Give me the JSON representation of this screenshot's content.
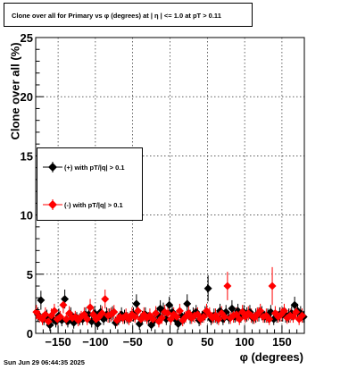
{
  "title": "Clone  over all for Primary vs φ (degrees) at |   η  | <= 1.0 at pT > 0.11",
  "timestamp": "Sun Jun 29 06:44:35 2025",
  "colors": {
    "plus": "#000000",
    "minus": "#ff0000"
  },
  "chart_data": {
    "type": "scatter",
    "title": "Clone  over all for Primary vs φ (degrees) at |   η  | <= 1.0 at pT > 0.11",
    "xlabel": "φ (degrees)",
    "ylabel": "Clone  over all (%)",
    "xlim": [
      -180,
      180
    ],
    "ylim": [
      0,
      25
    ],
    "xticks": [
      -150,
      -100,
      -50,
      0,
      50,
      100,
      150
    ],
    "xtick_labels": [
      "−150",
      "−100",
      "−50",
      "0",
      "50",
      "100",
      "150"
    ],
    "yticks": [
      0,
      5,
      10,
      15,
      20,
      25
    ],
    "ytick_labels": [
      "0",
      "5",
      "10",
      "15",
      "20",
      "25"
    ],
    "grid": true,
    "legend_position": "left-middle",
    "series": [
      {
        "name": "(+) with pT/|q| > 0.1",
        "color": "#000000",
        "x": [
          -177,
          -173,
          -169,
          -165,
          -161,
          -157,
          -153,
          -149,
          -145,
          -141,
          -137,
          -133,
          -129,
          -125,
          -121,
          -117,
          -113,
          -109,
          -105,
          -101,
          -97,
          -93,
          -89,
          -85,
          -81,
          -77,
          -73,
          -69,
          -65,
          -61,
          -57,
          -53,
          -49,
          -45,
          -41,
          -37,
          -33,
          -29,
          -25,
          -21,
          -17,
          -13,
          -9,
          -5,
          -1,
          3,
          7,
          11,
          15,
          19,
          23,
          27,
          31,
          35,
          39,
          43,
          47,
          51,
          55,
          59,
          63,
          67,
          71,
          75,
          79,
          83,
          87,
          91,
          95,
          99,
          103,
          107,
          111,
          115,
          119,
          123,
          127,
          131,
          135,
          139,
          143,
          147,
          151,
          155,
          159,
          163,
          167,
          171,
          175,
          179
        ],
        "y": [
          1.6,
          2.8,
          1.2,
          1.4,
          0.7,
          1.2,
          1.0,
          1.5,
          1.1,
          2.9,
          1.0,
          1.6,
          0.9,
          1.3,
          1.2,
          1.2,
          1.6,
          1.6,
          1.0,
          1.7,
          0.8,
          1.8,
          1.2,
          1.6,
          1.5,
          1.7,
          0.9,
          1.2,
          1.6,
          1.4,
          1.3,
          1.4,
          1.6,
          2.5,
          0.8,
          1.4,
          1.6,
          1.3,
          0.7,
          1.1,
          1.6,
          2.1,
          1.9,
          1.2,
          2.4,
          1.8,
          1.2,
          0.8,
          1.5,
          1.3,
          2.5,
          1.4,
          1.6,
          1.8,
          1.1,
          1.4,
          1.7,
          3.8,
          1.2,
          1.5,
          1.3,
          1.9,
          1.2,
          1.8,
          1.3,
          2.1,
          1.4,
          1.9,
          1.4,
          1.8,
          1.6,
          1.8,
          1.3,
          1.5,
          1.6,
          1.7,
          1.4,
          1.5,
          1.8,
          1.2,
          1.4,
          1.6,
          1.6,
          1.5,
          1.5,
          1.7,
          2.4,
          1.9,
          1.7,
          1.4
        ],
        "err": [
          0.6,
          0.8,
          0.5,
          0.6,
          0.5,
          0.6,
          0.5,
          0.6,
          0.5,
          0.8,
          0.5,
          0.6,
          0.5,
          0.5,
          0.5,
          0.5,
          0.6,
          0.6,
          0.5,
          0.6,
          0.5,
          0.6,
          0.5,
          0.6,
          0.6,
          0.6,
          0.5,
          0.5,
          0.6,
          0.6,
          0.5,
          0.5,
          0.6,
          0.8,
          0.5,
          0.5,
          0.6,
          0.5,
          0.5,
          0.5,
          0.6,
          0.7,
          0.7,
          0.5,
          0.7,
          0.6,
          0.5,
          0.5,
          0.6,
          0.5,
          0.8,
          0.6,
          0.6,
          0.6,
          0.5,
          0.5,
          0.6,
          1.1,
          0.5,
          0.6,
          0.5,
          0.6,
          0.5,
          0.6,
          0.5,
          0.7,
          0.5,
          0.6,
          0.5,
          0.6,
          0.6,
          0.6,
          0.5,
          0.6,
          0.6,
          0.6,
          0.5,
          0.6,
          0.6,
          0.5,
          0.5,
          0.6,
          0.6,
          0.6,
          0.6,
          0.6,
          0.7,
          0.6,
          0.6,
          0.5
        ]
      },
      {
        "name": "(-) with pT/|q| > 0.1",
        "color": "#ff0000",
        "x": [
          -179,
          -175,
          -171,
          -167,
          -163,
          -159,
          -155,
          -151,
          -147,
          -143,
          -139,
          -135,
          -131,
          -127,
          -123,
          -119,
          -115,
          -111,
          -107,
          -103,
          -99,
          -95,
          -91,
          -87,
          -83,
          -79,
          -75,
          -71,
          -67,
          -63,
          -59,
          -55,
          -51,
          -47,
          -43,
          -39,
          -35,
          -31,
          -27,
          -23,
          -19,
          -15,
          -11,
          -7,
          -3,
          1,
          5,
          9,
          13,
          17,
          21,
          25,
          29,
          33,
          37,
          41,
          45,
          49,
          53,
          57,
          61,
          65,
          69,
          73,
          77,
          81,
          85,
          89,
          93,
          97,
          101,
          105,
          109,
          113,
          117,
          121,
          125,
          129,
          133,
          137,
          141,
          145,
          149,
          153,
          157,
          161,
          165,
          169,
          173,
          177
        ],
        "y": [
          1.8,
          1.4,
          1.2,
          1.6,
          1.0,
          1.5,
          1.9,
          1.2,
          1.4,
          2.4,
          1.2,
          1.7,
          1.3,
          1.4,
          1.1,
          1.4,
          1.6,
          1.2,
          2.2,
          1.6,
          1.2,
          1.4,
          1.7,
          2.9,
          1.5,
          1.6,
          1.8,
          1.1,
          1.4,
          1.3,
          1.5,
          1.2,
          1.6,
          1.4,
          1.9,
          1.2,
          1.6,
          1.3,
          1.5,
          1.2,
          1.7,
          1.0,
          1.3,
          1.8,
          1.7,
          1.2,
          1.6,
          1.4,
          1.9,
          1.1,
          1.4,
          1.7,
          1.3,
          1.5,
          1.6,
          1.2,
          1.4,
          1.9,
          1.6,
          1.3,
          1.5,
          1.2,
          1.7,
          1.4,
          4.0,
          1.3,
          1.5,
          1.6,
          1.2,
          1.8,
          1.4,
          1.7,
          1.5,
          1.3,
          1.6,
          1.9,
          1.4,
          1.5,
          1.2,
          4.0,
          1.7,
          1.4,
          1.6,
          1.9,
          1.3,
          1.5,
          1.4,
          1.8,
          1.2,
          1.5
        ],
        "err": [
          0.6,
          0.5,
          0.5,
          0.6,
          0.5,
          0.6,
          0.6,
          0.5,
          0.5,
          0.7,
          0.5,
          0.6,
          0.5,
          0.5,
          0.5,
          0.5,
          0.6,
          0.5,
          0.7,
          0.6,
          0.5,
          0.5,
          0.6,
          0.8,
          0.6,
          0.6,
          0.6,
          0.5,
          0.5,
          0.5,
          0.6,
          0.5,
          0.6,
          0.5,
          0.6,
          0.5,
          0.6,
          0.5,
          0.6,
          0.5,
          0.6,
          0.5,
          0.5,
          0.6,
          0.6,
          0.5,
          0.6,
          0.5,
          0.6,
          0.5,
          0.5,
          0.6,
          0.5,
          0.6,
          0.6,
          0.5,
          0.5,
          0.6,
          0.6,
          0.5,
          0.6,
          0.5,
          0.6,
          0.5,
          1.2,
          0.5,
          0.6,
          0.6,
          0.5,
          0.6,
          0.5,
          0.6,
          0.6,
          0.5,
          0.6,
          0.6,
          0.5,
          0.6,
          0.5,
          1.6,
          0.6,
          0.5,
          0.6,
          0.6,
          0.5,
          0.6,
          0.5,
          0.6,
          0.5,
          0.6
        ]
      }
    ]
  }
}
